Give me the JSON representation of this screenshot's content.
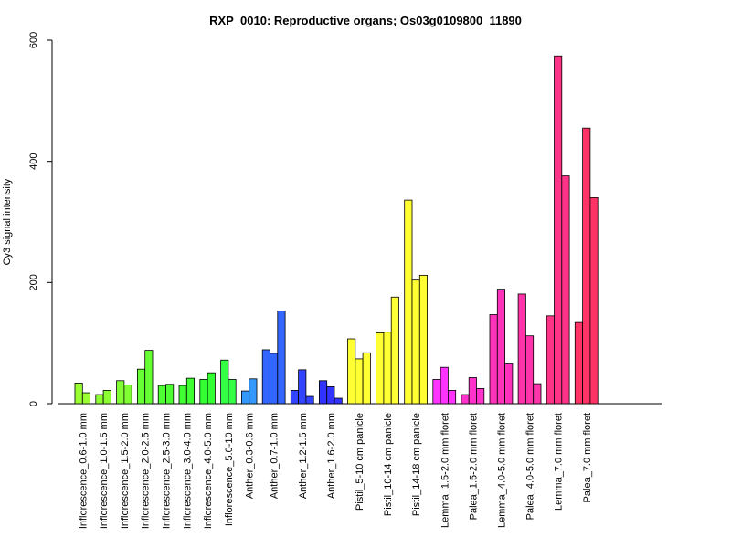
{
  "chart_data": {
    "type": "bar",
    "title": "RXP_0010: Reproductive organs; Os03g0109800_11890",
    "xlabel": "",
    "ylabel": "Cy3 signal intensity",
    "ylim": [
      0,
      600
    ],
    "yticks": [
      0,
      200,
      400,
      600
    ],
    "grid": false,
    "groups": [
      {
        "label": "Inflorescence_0.6-1.0 mm",
        "color": "#99ff33",
        "values": [
          34,
          18
        ]
      },
      {
        "label": "Inflorescence_1.0-1.5 mm",
        "color": "#8cff33",
        "values": [
          15,
          22
        ]
      },
      {
        "label": "Inflorescence_1.5-2.0 mm",
        "color": "#80ff33",
        "values": [
          38,
          31
        ]
      },
      {
        "label": "Inflorescence_2.0-2.5 mm",
        "color": "#66ff33",
        "values": [
          57,
          88
        ]
      },
      {
        "label": "Inflorescence_2.5-3.0 mm",
        "color": "#4dff33",
        "values": [
          30,
          32
        ]
      },
      {
        "label": "Inflorescence_3.0-4.0 mm",
        "color": "#40ff33",
        "values": [
          30,
          42
        ]
      },
      {
        "label": "Inflorescence_4.0-5.0 mm",
        "color": "#33ff33",
        "values": [
          40,
          51
        ]
      },
      {
        "label": "Inflorescence_5.0-10 mm",
        "color": "#33ff44",
        "values": [
          72,
          40
        ]
      },
      {
        "label": "Anther_0.3-0.6 mm",
        "color": "#3399ff",
        "values": [
          21,
          41
        ]
      },
      {
        "label": "Anther_0.7-1.0 mm",
        "color": "#3366ff",
        "values": [
          89,
          83,
          153
        ]
      },
      {
        "label": "Anther_1.2-1.5 mm",
        "color": "#3344ff",
        "values": [
          22,
          56,
          12
        ]
      },
      {
        "label": "Anther_1.6-2.0 mm",
        "color": "#3333ff",
        "values": [
          38,
          28,
          9
        ]
      },
      {
        "label": "Pistil_5-10 cm panicle",
        "color": "#ffff33",
        "values": [
          107,
          74,
          84
        ]
      },
      {
        "label": "Pistil_10-14 cm panicle",
        "color": "#ffff33",
        "values": [
          117,
          118,
          176
        ]
      },
      {
        "label": "Pistil_14-18 cm panicle",
        "color": "#ffff33",
        "values": [
          336,
          204,
          212
        ]
      },
      {
        "label": "Lemma_1.5-2.0 mm floret",
        "color": "#ff33ff",
        "values": [
          40,
          60,
          22
        ]
      },
      {
        "label": "Palea_1.5-2.0 mm floret",
        "color": "#ff33cc",
        "values": [
          15,
          43,
          25
        ]
      },
      {
        "label": "Lemma_4.0-5.0 mm floret",
        "color": "#ff33bb",
        "values": [
          147,
          189,
          67
        ]
      },
      {
        "label": "Palea_4.0-5.0 mm floret",
        "color": "#ff33aa",
        "values": [
          181,
          112,
          33
        ]
      },
      {
        "label": "Lemma_7.0 mm floret",
        "color": "#ff3388",
        "values": [
          145,
          574,
          376
        ]
      },
      {
        "label": "Palea_7.0 mm floret",
        "color": "#ff3366",
        "values": [
          134,
          455,
          340
        ]
      }
    ]
  }
}
